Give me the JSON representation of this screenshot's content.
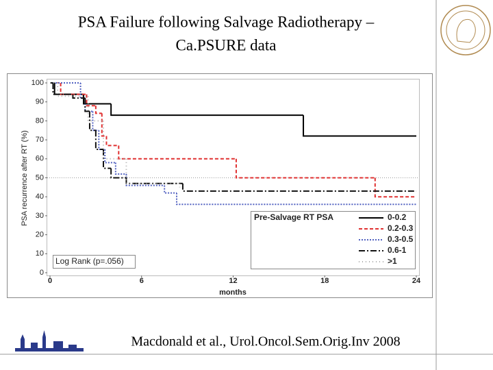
{
  "slide": {
    "title_lines": [
      "PSA Failure following Salvage Radiotherapy –",
      "Ca.PSURE data"
    ],
    "citation": "Macdonald et al., Urol.Oncol.Sem.Orig.Inv 2008"
  },
  "chart_data": {
    "type": "step",
    "x_label": "months",
    "y_label": "PSA recurrence after RT (%)",
    "xlim": [
      0,
      24
    ],
    "ylim": [
      0,
      100
    ],
    "xticks": [
      0,
      6,
      12,
      18,
      24
    ],
    "yticks": [
      0,
      10,
      20,
      30,
      40,
      50,
      60,
      70,
      80,
      90,
      100
    ],
    "reference_line": 50,
    "annotation": "Log Rank (p=.056)",
    "legend_title": "Pre-Salvage RT PSA",
    "legend_position": "lower right",
    "series": [
      {
        "name": "0-0.2",
        "color": "#000000",
        "line_style": "solid",
        "x": [
          0,
          0.3,
          2.2,
          4,
          16.6,
          24
        ],
        "values": [
          100,
          94,
          89,
          83,
          72,
          72
        ]
      },
      {
        "name": "0.2-0.3",
        "color": "#e03030",
        "line_style": "dashed",
        "x": [
          0,
          0.7,
          2.4,
          3,
          3.4,
          3.7,
          4.5,
          12.2,
          21.3,
          24
        ],
        "values": [
          100,
          94,
          88,
          84,
          72,
          67,
          60,
          50,
          40,
          40
        ]
      },
      {
        "name": "0.3-0.5",
        "color": "#5060c0",
        "line_style": "dotted",
        "x": [
          0,
          2,
          2.3,
          2.8,
          3.2,
          3.6,
          4.3,
          5,
          7.5,
          8.3,
          24
        ],
        "values": [
          100,
          92,
          85,
          75,
          65,
          58,
          52,
          46,
          42,
          36,
          36
        ]
      },
      {
        "name": "0.6-1",
        "color": "#111111",
        "line_style": "dashdot",
        "x": [
          0,
          0.2,
          1.5,
          2.3,
          2.6,
          3,
          3.5,
          4,
          5,
          8.7,
          24
        ],
        "values": [
          100,
          94,
          92,
          85,
          75,
          65,
          55,
          50,
          47,
          43,
          43
        ]
      },
      {
        "name": ">1",
        "color": "#a8a8a8",
        "line_style": "sparse",
        "x": [
          0,
          0.5,
          2.5,
          3.5,
          5,
          8.5
        ],
        "values": [
          100,
          93,
          80,
          60,
          47,
          45
        ]
      }
    ]
  }
}
